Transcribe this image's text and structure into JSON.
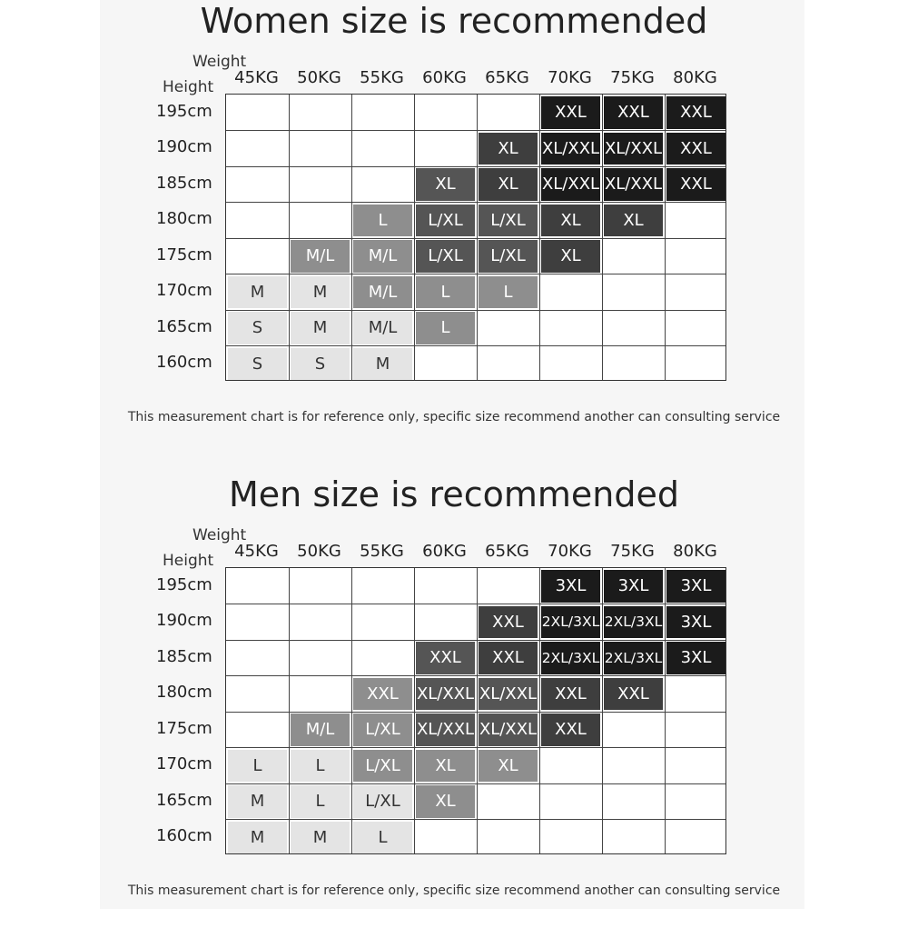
{
  "chart_data": [
    {
      "type": "table",
      "title": "Women size is recommended",
      "weight_label": "Weight",
      "height_label": "Height",
      "columns": [
        "45KG",
        "50KG",
        "55KG",
        "60KG",
        "65KG",
        "70KG",
        "75KG",
        "80KG"
      ],
      "rows": [
        "195cm",
        "190cm",
        "185cm",
        "180cm",
        "175cm",
        "170cm",
        "165cm",
        "160cm"
      ],
      "cells": [
        [
          "",
          "",
          "",
          "",
          "",
          "XXL",
          "XXL",
          "XXL"
        ],
        [
          "",
          "",
          "",
          "",
          "XL",
          "XL/XXL",
          "XL/XXL",
          "XXL"
        ],
        [
          "",
          "",
          "",
          "XL",
          "XL",
          "XL/XXL",
          "XL/XXL",
          "XXL"
        ],
        [
          "",
          "",
          "L",
          "L/XL",
          "L/XL",
          "XL",
          "XL",
          ""
        ],
        [
          "",
          "M/L",
          "M/L",
          "L/XL",
          "L/XL",
          "XL",
          "",
          ""
        ],
        [
          "M",
          "M",
          "M/L",
          "L",
          "L",
          "",
          "",
          ""
        ],
        [
          "S",
          "M",
          "M/L",
          "L",
          "",
          "",
          "",
          ""
        ],
        [
          "S",
          "S",
          "M",
          "",
          "",
          "",
          "",
          ""
        ]
      ],
      "shades": [
        [
          0,
          0,
          0,
          0,
          0,
          5,
          5,
          5
        ],
        [
          0,
          0,
          0,
          0,
          4,
          5,
          5,
          5
        ],
        [
          0,
          0,
          0,
          3,
          4,
          5,
          5,
          5
        ],
        [
          0,
          0,
          2,
          3,
          3,
          4,
          4,
          0
        ],
        [
          0,
          2,
          2,
          3,
          3,
          4,
          0,
          0
        ],
        [
          1,
          1,
          2,
          2,
          2,
          0,
          0,
          0
        ],
        [
          1,
          1,
          1,
          2,
          0,
          0,
          0,
          0
        ],
        [
          1,
          1,
          1,
          0,
          0,
          0,
          0,
          0
        ]
      ],
      "note": "This measurement chart is for reference only, specific size recommend another can consulting service"
    },
    {
      "type": "table",
      "title": "Men size is recommended",
      "weight_label": "Weight",
      "height_label": "Height",
      "columns": [
        "45KG",
        "50KG",
        "55KG",
        "60KG",
        "65KG",
        "70KG",
        "75KG",
        "80KG"
      ],
      "rows": [
        "195cm",
        "190cm",
        "185cm",
        "180cm",
        "175cm",
        "170cm",
        "165cm",
        "160cm"
      ],
      "cells": [
        [
          "",
          "",
          "",
          "",
          "",
          "3XL",
          "3XL",
          "3XL"
        ],
        [
          "",
          "",
          "",
          "",
          "XXL",
          "2XL/3XL",
          "2XL/3XL",
          "3XL"
        ],
        [
          "",
          "",
          "",
          "XXL",
          "XXL",
          "2XL/3XL",
          "2XL/3XL",
          "3XL"
        ],
        [
          "",
          "",
          "XXL",
          "XL/XXL",
          "XL/XXL",
          "XXL",
          "XXL",
          ""
        ],
        [
          "",
          "M/L",
          "L/XL",
          "XL/XXL",
          "XL/XXL",
          "XXL",
          "",
          ""
        ],
        [
          "L",
          "L",
          "L/XL",
          "XL",
          "XL",
          "",
          "",
          ""
        ],
        [
          "M",
          "L",
          "L/XL",
          "XL",
          "",
          "",
          "",
          ""
        ],
        [
          "M",
          "M",
          "L",
          "",
          "",
          "",
          "",
          ""
        ]
      ],
      "shades": [
        [
          0,
          0,
          0,
          0,
          0,
          5,
          5,
          5
        ],
        [
          0,
          0,
          0,
          0,
          4,
          5,
          5,
          5
        ],
        [
          0,
          0,
          0,
          3,
          4,
          5,
          5,
          5
        ],
        [
          0,
          0,
          2,
          3,
          3,
          4,
          4,
          0
        ],
        [
          0,
          2,
          2,
          3,
          3,
          4,
          0,
          0
        ],
        [
          1,
          1,
          2,
          2,
          2,
          0,
          0,
          0
        ],
        [
          1,
          1,
          1,
          2,
          0,
          0,
          0,
          0
        ],
        [
          1,
          1,
          1,
          0,
          0,
          0,
          0,
          0
        ]
      ],
      "note": "This measurement chart is for reference only, specific size recommend another can consulting service"
    }
  ],
  "colors": {
    "shade_fill": [
      "#ffffff",
      "#e4e4e4",
      "#8e8e8e",
      "#555555",
      "#3e3e3e",
      "#1b1b1b"
    ],
    "shade_text": [
      "#222222",
      "#333333",
      "#ffffff",
      "#ffffff",
      "#ffffff",
      "#ffffff"
    ]
  }
}
